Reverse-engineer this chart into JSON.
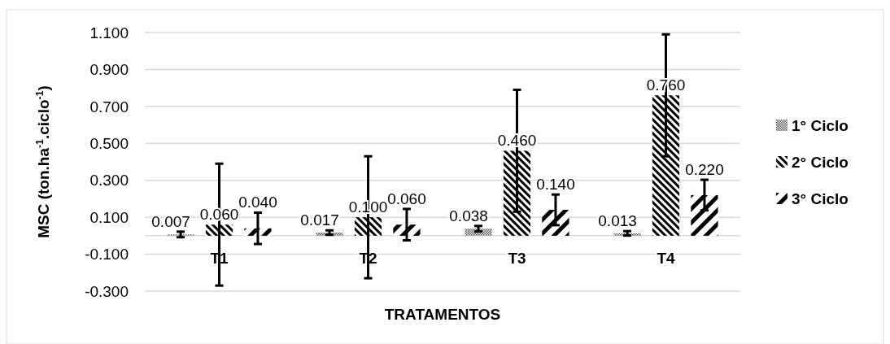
{
  "chart_data": {
    "type": "bar",
    "xlabel": "TRATAMENTOS",
    "ylabel": "MSC (ton.ha$^{-1}$.ciclo$^{-1}$)",
    "categories": [
      "T1",
      "T2",
      "T3",
      "T4"
    ],
    "series": [
      {
        "name": "1° Ciclo",
        "color": "#000000",
        "values": [
          0.007,
          0.017,
          0.038,
          0.013
        ],
        "errors": [
          0.015,
          0.012,
          0.015,
          0.012
        ],
        "value_labels": [
          "0.007",
          "0.017",
          "0.038",
          "0.013"
        ]
      },
      {
        "name": "2° Ciclo",
        "color": "#000000",
        "values": [
          0.06,
          0.1,
          0.46,
          0.76
        ],
        "errors": [
          0.33,
          0.33,
          0.33,
          0.33
        ],
        "value_labels": [
          "0.060",
          "0.100",
          "0.460",
          "0.760"
        ]
      },
      {
        "name": "3° Ciclo",
        "color": "#000000",
        "values": [
          0.04,
          0.06,
          0.14,
          0.22
        ],
        "errors": [
          0.085,
          0.085,
          0.083,
          0.083
        ],
        "value_labels": [
          "0.040",
          "0.060",
          "0.140",
          "0.220"
        ]
      }
    ],
    "ylim": [
      -0.3,
      1.1
    ],
    "yticks": [
      {
        "value": -0.3,
        "label": "-0.300"
      },
      {
        "value": -0.1,
        "label": "-0.100"
      },
      {
        "value": 0.1,
        "label": "0.100"
      },
      {
        "value": 0.3,
        "label": "0.300"
      },
      {
        "value": 0.5,
        "label": "0.500"
      },
      {
        "value": 0.7,
        "label": "0.700"
      },
      {
        "value": 0.9,
        "label": "0.900"
      },
      {
        "value": 1.1,
        "label": "1.100"
      }
    ],
    "grid": "y",
    "legend": "right"
  }
}
